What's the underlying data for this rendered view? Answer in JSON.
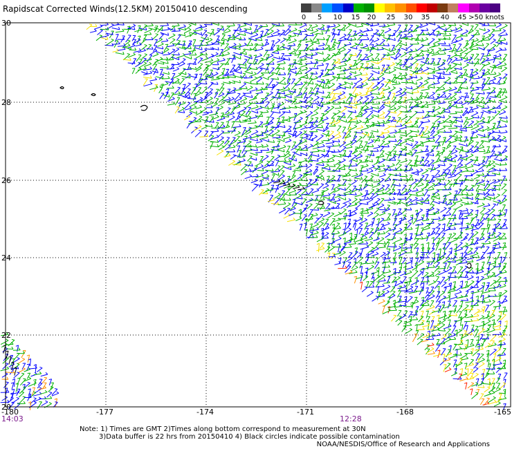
{
  "title": "Rapidscat Corrected Winds(12.5KM) 20150410 descending",
  "colorbar": {
    "labels": [
      "0",
      "5",
      "10",
      "15",
      "20",
      "25",
      "30",
      "35",
      "40",
      "45",
      ">50 knots"
    ],
    "colors": [
      "#404040",
      "#888888",
      "#00a0ff",
      "#0050ff",
      "#0000c8",
      "#00b000",
      "#009000",
      "#ffff00",
      "#ffc000",
      "#ff9000",
      "#ff5000",
      "#ff0000",
      "#c00000",
      "#7a3a10",
      "#c08060",
      "#ff00ff",
      "#b000b0",
      "#6a00a0",
      "#4b0082"
    ]
  },
  "map": {
    "lat_labels": [
      "30",
      "28",
      "26",
      "24",
      "22",
      "20"
    ],
    "lon_labels": [
      "-180",
      "-177",
      "-174",
      "-171",
      "-168",
      "-165"
    ],
    "time_labels": {
      "left": "14:03",
      "center": "12:28"
    },
    "colors": {
      "blue": "#0000ff",
      "green": "#00b000",
      "yellow": "#f5e000",
      "orange": "#ff9000",
      "red": "#ff2000",
      "black": "#000000"
    }
  },
  "notes": {
    "line1": "Note: 1) Times are GMT 2)Times along bottom correspond to measurement at 30N",
    "line2": "3)Data buffer is 22 hrs from 20150410 4) Black circles indicate possible contamination"
  },
  "credit": "NOAA/NESDIS/Office of Research and Applications"
}
